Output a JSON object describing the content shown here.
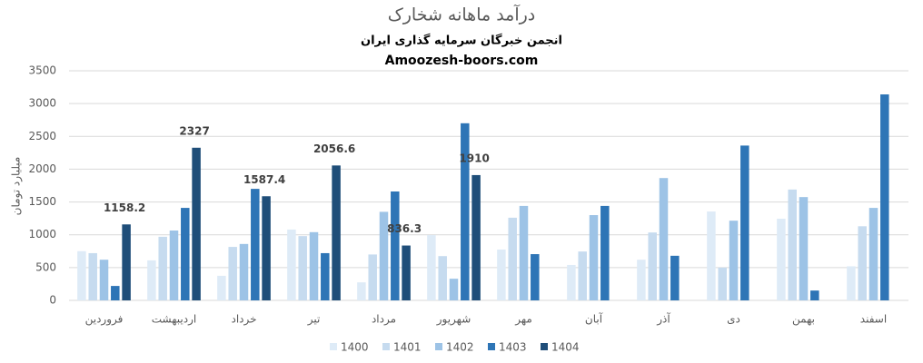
{
  "chart_data": {
    "type": "bar",
    "title": "درآمد ماهانه شخارک",
    "subtitle": "انجمن خبرگان سرمایه گذاری ایران",
    "subtitle2": "Amoozesh-boors.com",
    "y_label": "میلیارد تومان",
    "categories": [
      "فروردین",
      "اردیبهشت",
      "خرداد",
      "تیر",
      "مرداد",
      "شهریور",
      "مهر",
      "آبان",
      "آذر",
      "دی",
      "بهمن",
      "اسفند"
    ],
    "series": [
      {
        "name": "1400",
        "color": "#deebf7",
        "values": [
          750,
          610,
          375,
          1080,
          275,
          995,
          775,
          540,
          620,
          1355,
          1245,
          520
        ]
      },
      {
        "name": "1401",
        "color": "#c6dbef",
        "values": [
          720,
          970,
          815,
          980,
          700,
          675,
          1260,
          745,
          1035,
          500,
          1690,
          1130
        ]
      },
      {
        "name": "1402",
        "color": "#9dc3e6",
        "values": [
          620,
          1065,
          860,
          1040,
          1350,
          330,
          1440,
          1300,
          1865,
          1215,
          1575,
          1410
        ]
      },
      {
        "name": "1403",
        "color": "#2e75b6",
        "values": [
          220,
          1410,
          1700,
          720,
          1660,
          2700,
          705,
          1440,
          680,
          2360,
          150,
          3140
        ]
      },
      {
        "name": "1404",
        "color": "#1f4e79",
        "show_values": true,
        "values": [
          1158.2,
          2327,
          1587.4,
          2056.6,
          836.3,
          1910,
          null,
          null,
          null,
          null,
          null,
          null
        ]
      }
    ],
    "ylim": [
      0,
      3500
    ],
    "yticks": [
      0,
      500,
      1000,
      1500,
      2000,
      2500,
      3000,
      3500
    ],
    "grid": true,
    "legend": "bottom"
  }
}
